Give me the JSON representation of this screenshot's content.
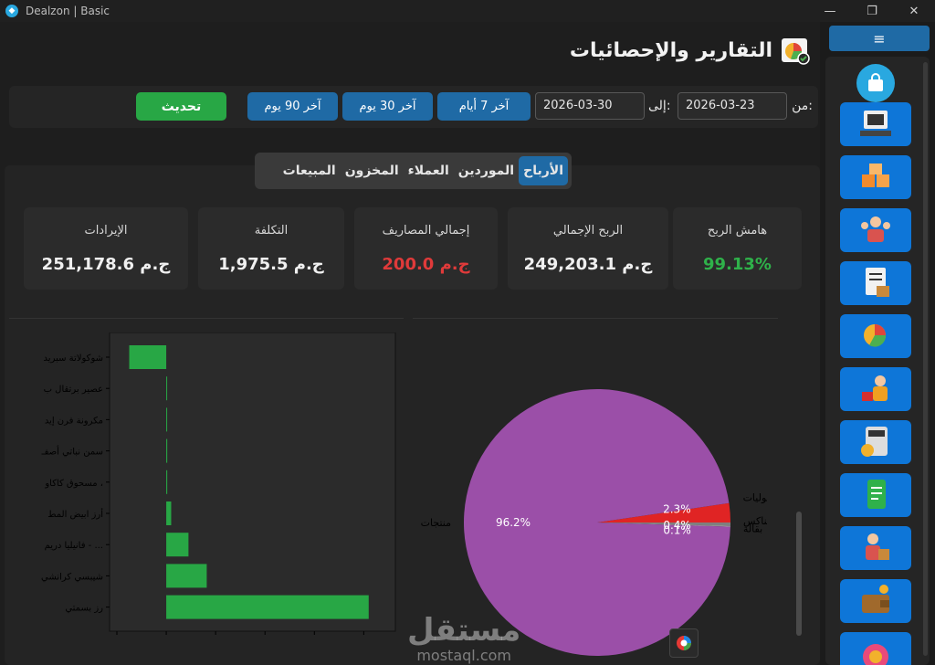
{
  "window": {
    "title": "Dealzon | Basic",
    "controls": {
      "minimize": "—",
      "maximize": "❐",
      "close": "✕"
    }
  },
  "page": {
    "title": "التقارير والإحصائيات"
  },
  "filters": {
    "from_label": "من:",
    "from_date": "2026-03-23",
    "to_label": "إلى:",
    "to_date": "2026-03-30",
    "quick": [
      "آخر 7 أيام",
      "آخر 30 يوم",
      "آخر 90 يوم"
    ],
    "refresh_label": "تحديث"
  },
  "tabs": [
    {
      "label": "الأرباح",
      "active": true
    },
    {
      "label": "الموردين",
      "active": false
    },
    {
      "label": "العملاء",
      "active": false
    },
    {
      "label": "المخزون",
      "active": false
    },
    {
      "label": "المبيعات",
      "active": false
    }
  ],
  "cards": [
    {
      "label": "هامش الربح",
      "value": "99.13%",
      "color": "#2fb14a"
    },
    {
      "label": "الربح الإجمالي",
      "value": "249,203.1 ج.م",
      "color": "#f0f0f0"
    },
    {
      "label": "إجمالي المصاريف",
      "value": "200.0 ج.م",
      "color": "#e03a3a"
    },
    {
      "label": "التكلفة",
      "value": "1,975.5 ج.م",
      "color": "#f0f0f0"
    },
    {
      "label": "الإيرادات",
      "value": "251,178.6 ج.م",
      "color": "#f0f0f0"
    }
  ],
  "chart_data": [
    {
      "type": "bar",
      "orientation": "horizontal",
      "categories": [
        "شوكولاتة سبريد",
        "عصير برتقال ب",
        "مكرونة فرن إيد",
        "سمن نباتي أصفـ",
        "مسحوق كاكاو ،",
        "أرز ابيض المط",
        "فانيليا دريم - ...",
        "شيبسي كرانشي",
        "رز بسمتي"
      ],
      "values": [
        -75,
        0,
        0,
        2,
        2,
        10,
        45,
        82,
        410
      ],
      "xlim": [
        -100,
        440
      ],
      "color": "#28a745"
    },
    {
      "type": "pie",
      "labels": [
        "منتجات",
        "بقوليات",
        "سناكس",
        "بقالة"
      ],
      "values": [
        96.2,
        2.3,
        0.4,
        0.1
      ],
      "display_labels": [
        "96.2%",
        "2.3%",
        "0.4%",
        "0.1%"
      ],
      "colors": [
        "#9b4fa8",
        "#e02424",
        "#7f7f7f",
        "#a8a8a8"
      ]
    }
  ],
  "sidebar": {
    "menu_label": "≡",
    "items": [
      "pos-icon",
      "inventory-icon",
      "customers-icon",
      "orders-icon",
      "reports-icon",
      "delivery-icon",
      "accounting-icon",
      "notes-icon",
      "suppliers-icon",
      "wallet-icon",
      "settings-icon"
    ]
  },
  "watermark": {
    "line1": "مستقل",
    "line2": "mostaql.com"
  },
  "colors": {
    "accent": "#1f6aa5",
    "green": "#28a745",
    "nav": "#0e76d8"
  }
}
